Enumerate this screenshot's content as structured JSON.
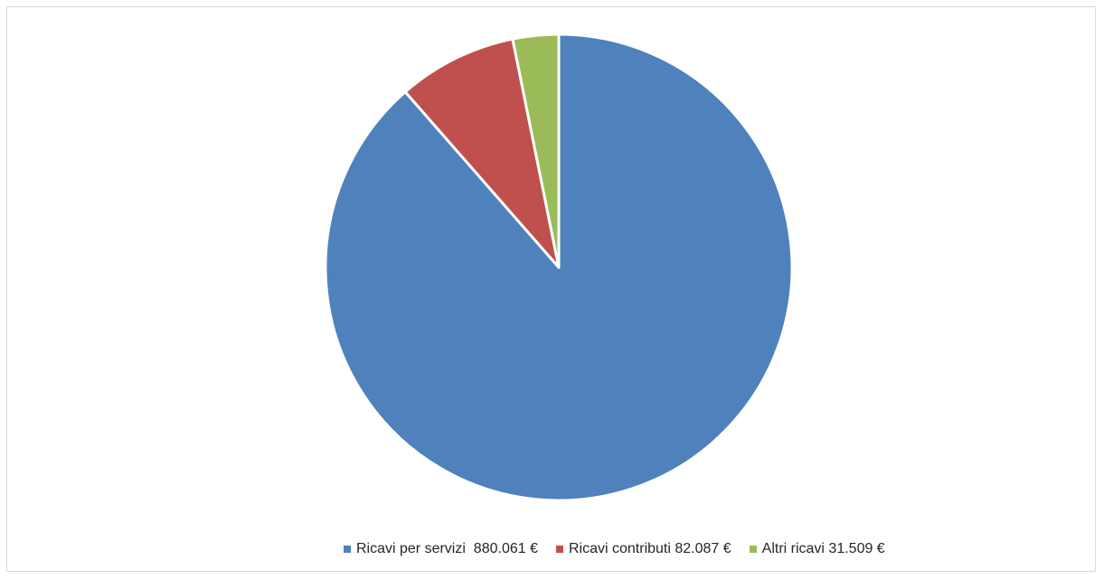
{
  "chart_data": {
    "type": "pie",
    "title": "",
    "legend_position": "bottom",
    "slices": [
      {
        "label": "Ricavi per servizi  880.061 €",
        "value": 880061,
        "color": "#4f81bd"
      },
      {
        "label": "Ricavi contributi 82.087 €",
        "value": 82087,
        "color": "#c0504d"
      },
      {
        "label": "Altri ricavi 31.509 €",
        "value": 31509,
        "color": "#9bbb59"
      }
    ]
  }
}
